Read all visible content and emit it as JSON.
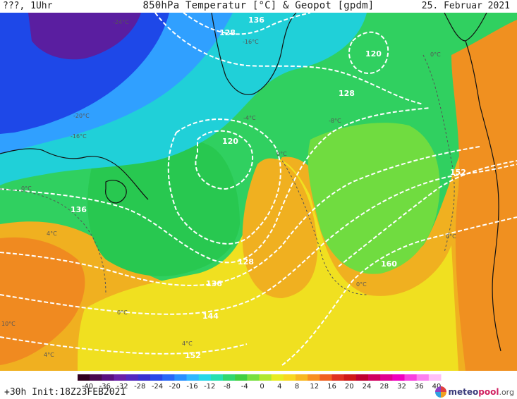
{
  "header": {
    "left": "???, 1Uhr",
    "title": "850hPa Temperatur [°C] & Geopot [gpdm]",
    "date": "25. Februar 2021"
  },
  "footer": {
    "run_info": "+30h Init:18Z23FEB2021",
    "logo_meteo": "meteo",
    "logo_pool": "pool",
    "logo_tld": ".org"
  },
  "colors": {
    "deep_purple": "#5a1ea0",
    "blue": "#1a40e0",
    "light_blue": "#30a0ff",
    "cyan": "#20d8d8",
    "green": "#28c850",
    "light_green": "#78e040",
    "yellow": "#f0e020",
    "orange_yellow": "#f0b820",
    "orange": "#f09020",
    "contour": "#ffffff",
    "coast": "#111111"
  },
  "legend": {
    "labels": [
      "-40",
      "-36",
      "-32",
      "-28",
      "-24",
      "-20",
      "-16",
      "-12",
      "-8",
      "-4",
      "0",
      "4",
      "8",
      "12",
      "16",
      "20",
      "24",
      "28",
      "32",
      "36",
      "40"
    ],
    "colors": [
      "#300020",
      "#4a0a50",
      "#5a1080",
      "#6a20a8",
      "#5428c0",
      "#3a30d0",
      "#2a48e8",
      "#2a68f8",
      "#2a90ff",
      "#30b8ff",
      "#28d8e8",
      "#28e0b0",
      "#30d870",
      "#40d040",
      "#78e040",
      "#b0e830",
      "#e8ec20",
      "#f8d820",
      "#f8b820",
      "#f89020",
      "#f06020",
      "#e03020",
      "#d01818",
      "#c00030",
      "#d00060",
      "#e00090",
      "#f000c0",
      "#f840e0",
      "#fc80f0",
      "#ffc0f8"
    ]
  },
  "map_labels": {
    "geopot": [
      {
        "text": "136"
      },
      {
        "text": "128"
      },
      {
        "text": "120"
      },
      {
        "text": "128"
      },
      {
        "text": "120"
      },
      {
        "text": "136"
      },
      {
        "text": "128"
      },
      {
        "text": "136"
      },
      {
        "text": "144"
      },
      {
        "text": "152"
      },
      {
        "text": "152"
      },
      {
        "text": "160"
      }
    ],
    "temperature": [
      {
        "text": "-24°C"
      },
      {
        "text": "-16°C"
      },
      {
        "text": "-20°C"
      },
      {
        "text": "-16°C"
      },
      {
        "text": "0°C"
      },
      {
        "text": "0°C"
      },
      {
        "text": "0°C"
      },
      {
        "text": "4°C"
      },
      {
        "text": "0°C"
      },
      {
        "text": "10°C"
      },
      {
        "text": "4°C"
      },
      {
        "text": "0°C"
      },
      {
        "text": "4°C"
      },
      {
        "text": "0°C"
      },
      {
        "text": "-4°C"
      },
      {
        "text": "-8°C"
      }
    ]
  }
}
